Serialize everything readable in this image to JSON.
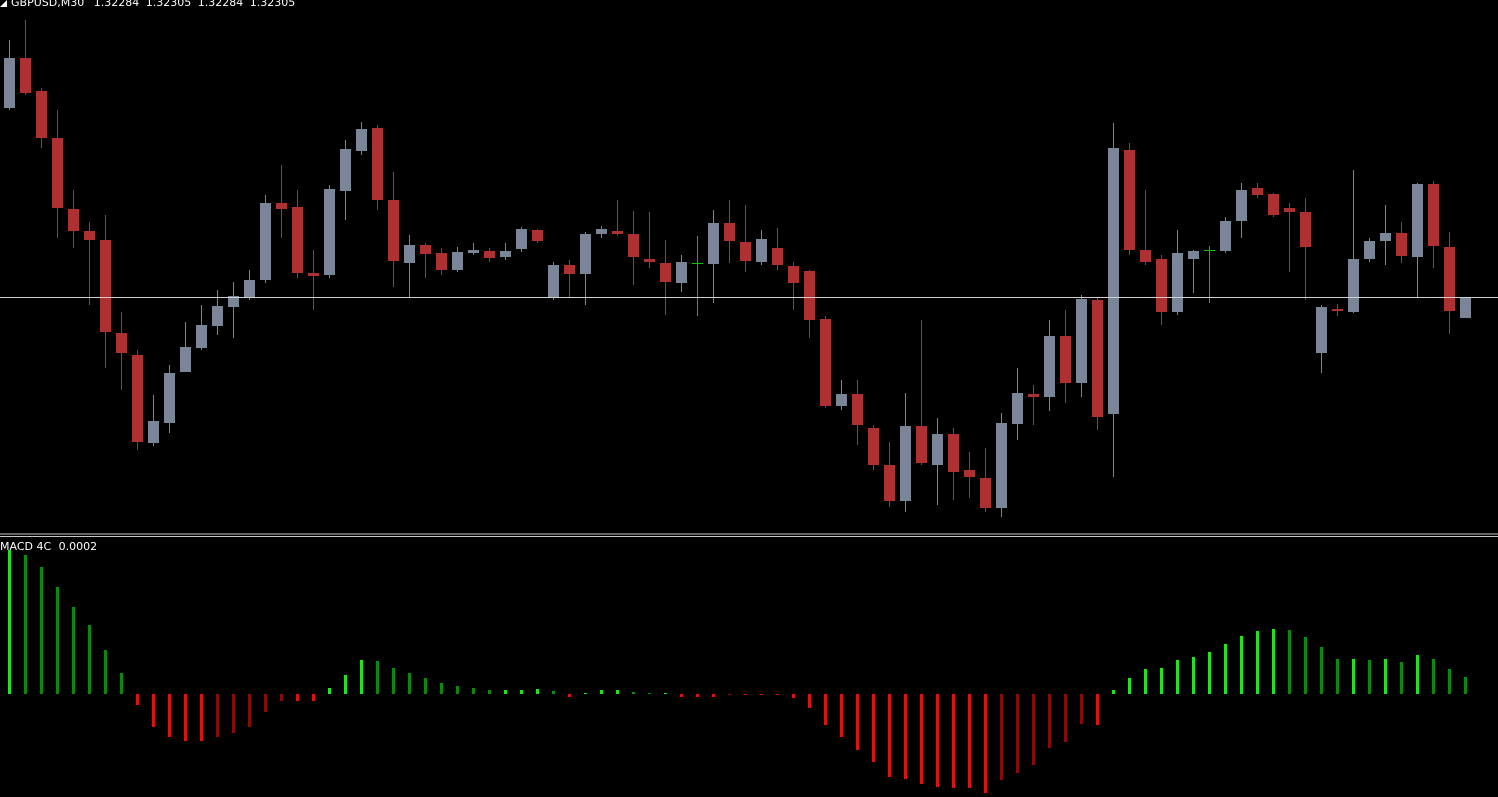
{
  "chart_data": [
    {
      "type": "candlestick",
      "title": "GBPUSD,M30",
      "open": [
        1.32494,
        1.32544,
        1.32511,
        1.32464,
        1.32393,
        1.32371,
        1.32362,
        1.32269,
        1.32247,
        1.32159,
        1.32179,
        1.3223,
        1.32254,
        1.32276,
        1.32295,
        1.32305,
        1.32322,
        1.32399,
        1.32395,
        1.32329,
        1.32327,
        1.32411,
        1.32451,
        1.32474,
        1.32402,
        1.32339,
        1.32357,
        1.32349,
        1.32332,
        1.32349,
        1.32351,
        1.32345,
        1.32353,
        1.32372,
        1.32304,
        1.32337,
        1.32328,
        1.32368,
        1.32371,
        1.32368,
        1.32343,
        1.32339,
        1.32319,
        1.32339,
        1.32338,
        1.32379,
        1.3236,
        1.3234,
        1.32354,
        1.32336,
        1.32331,
        1.32283,
        1.32196,
        1.32208,
        1.32174,
        1.32137,
        1.32101,
        1.32176,
        1.32137,
        1.32168,
        1.32132,
        1.32124,
        1.32094,
        1.32178,
        1.32208,
        1.32205,
        1.32266,
        1.32219,
        1.32302,
        1.32188,
        1.32452,
        1.32352,
        1.32343,
        1.3229,
        1.32343,
        1.32352,
        1.32351,
        1.32381,
        1.32414,
        1.32408,
        1.32394,
        1.3239,
        1.32249,
        1.32293,
        1.3229,
        1.32343,
        1.32361,
        1.32369,
        1.32345,
        1.32418,
        1.32355,
        1.32284
      ],
      "high": [
        1.32562,
        1.32582,
        1.32514,
        1.32492,
        1.32412,
        1.3238,
        1.32387,
        1.3229,
        1.32252,
        1.32207,
        1.32237,
        1.3228,
        1.32297,
        1.32312,
        1.3232,
        1.32332,
        1.32407,
        1.32437,
        1.32412,
        1.32352,
        1.32417,
        1.32462,
        1.3248,
        1.32477,
        1.3243,
        1.32367,
        1.32359,
        1.32354,
        1.32355,
        1.32359,
        1.32354,
        1.32359,
        1.32375,
        1.32373,
        1.3234,
        1.32342,
        1.3237,
        1.32376,
        1.32402,
        1.32391,
        1.3239,
        1.32362,
        1.32347,
        1.32366,
        1.32392,
        1.32402,
        1.32397,
        1.32372,
        1.32374,
        1.3234,
        1.32332,
        1.32286,
        1.32222,
        1.32222,
        1.32177,
        1.3216,
        1.32209,
        1.32282,
        1.32184,
        1.32174,
        1.3215,
        1.32154,
        1.32189,
        1.32234,
        1.32217,
        1.32282,
        1.32292,
        1.32307,
        1.32304,
        1.32479,
        1.32459,
        1.32412,
        1.32347,
        1.32372,
        1.32352,
        1.32356,
        1.32385,
        1.32419,
        1.32419,
        1.32409,
        1.32399,
        1.32404,
        1.32297,
        1.32298,
        1.32432,
        1.32364,
        1.32397,
        1.3238,
        1.32419,
        1.32421,
        1.3237,
        1.32305
      ],
      "low": [
        1.32492,
        1.32507,
        1.32454,
        1.32364,
        1.32354,
        1.32297,
        1.32234,
        1.32212,
        1.32152,
        1.32156,
        1.32169,
        1.3223,
        1.32252,
        1.32267,
        1.32264,
        1.32302,
        1.32319,
        1.32364,
        1.32324,
        1.32292,
        1.32324,
        1.32382,
        1.32447,
        1.32392,
        1.32315,
        1.32304,
        1.32324,
        1.32327,
        1.3233,
        1.32347,
        1.3234,
        1.32342,
        1.3235,
        1.32359,
        1.32302,
        1.32304,
        1.32297,
        1.32364,
        1.32366,
        1.32317,
        1.32334,
        1.32287,
        1.3231,
        1.32286,
        1.32299,
        1.32339,
        1.3233,
        1.32337,
        1.32332,
        1.32292,
        1.32264,
        1.32194,
        1.32192,
        1.32157,
        1.32132,
        1.32095,
        1.3209,
        1.32137,
        1.32097,
        1.32102,
        1.32104,
        1.3209,
        1.32085,
        1.32162,
        1.32177,
        1.32191,
        1.32199,
        1.32205,
        1.32172,
        1.32125,
        1.32347,
        1.32337,
        1.32277,
        1.32287,
        1.32309,
        1.32299,
        1.32349,
        1.32364,
        1.32404,
        1.32385,
        1.3233,
        1.32302,
        1.32229,
        1.32286,
        1.32289,
        1.3234,
        1.32337,
        1.32339,
        1.32305,
        1.32334,
        1.32268,
        1.32284
      ],
      "close": [
        1.32544,
        1.32509,
        1.32464,
        1.32394,
        1.32371,
        1.32362,
        1.3227,
        1.32249,
        1.3216,
        1.32181,
        1.32229,
        1.32255,
        1.32277,
        1.32296,
        1.32306,
        1.32322,
        1.32399,
        1.32393,
        1.32329,
        1.32326,
        1.32413,
        1.32453,
        1.32473,
        1.32402,
        1.32341,
        1.32357,
        1.32348,
        1.32332,
        1.3235,
        1.32352,
        1.32344,
        1.32351,
        1.32373,
        1.32361,
        1.32337,
        1.32328,
        1.32368,
        1.32373,
        1.32368,
        1.32345,
        1.3234,
        1.3232,
        1.3234,
        1.32339,
        1.32379,
        1.32361,
        1.32341,
        1.32363,
        1.32337,
        1.32319,
        1.32282,
        1.32196,
        1.32208,
        1.32177,
        1.32137,
        1.32101,
        1.32176,
        1.32139,
        1.32168,
        1.3213,
        1.32125,
        1.32094,
        1.32179,
        1.32209,
        1.32205,
        1.32266,
        1.32219,
        1.32303,
        1.32185,
        1.32454,
        1.32352,
        1.3234,
        1.3229,
        1.32349,
        1.32351,
        1.32352,
        1.32381,
        1.32412,
        1.32407,
        1.32387,
        1.3239,
        1.32355,
        1.32295,
        1.32291,
        1.32343,
        1.32361,
        1.32369,
        1.32346,
        1.32418,
        1.32356,
        1.32291,
        1.32305
      ],
      "ylim": [
        1.32067,
        1.32602
      ],
      "colors": {
        "bull": "#7a8597",
        "bear": "#ad3131",
        "doji": "#00c800"
      }
    },
    {
      "type": "bar",
      "title": "MACD 4C",
      "current_value": 0.0002,
      "values": [
        0.00144,
        0.00139,
        0.00127,
        0.00107,
        0.00087,
        0.00069,
        0.00044,
        0.00021,
        -0.00011,
        -0.00033,
        -0.00043,
        -0.00047,
        -0.00047,
        -0.00043,
        -0.00039,
        -0.00033,
        -0.00018,
        -7e-05,
        -7e-05,
        -7e-05,
        6e-05,
        0.00019,
        0.00034,
        0.00033,
        0.00026,
        0.00021,
        0.00016,
        0.00011,
        8e-05,
        6e-05,
        4e-05,
        4e-05,
        4e-05,
        5e-05,
        3e-05,
        -3e-05,
        1e-05,
        4e-05,
        4e-05,
        2e-05,
        1e-05,
        1e-05,
        -3e-05,
        -3e-05,
        -3e-05,
        -1e-05,
        -1e-05,
        -1e-05,
        -1e-05,
        -4e-05,
        -0.00014,
        -0.00031,
        -0.00043,
        -0.00056,
        -0.00068,
        -0.00083,
        -0.00085,
        -0.0009,
        -0.00093,
        -0.00094,
        -0.00094,
        -0.00099,
        -0.00086,
        -0.00079,
        -0.00071,
        -0.00054,
        -0.00048,
        -0.0003,
        -0.00031,
        4e-05,
        0.00016,
        0.00025,
        0.00026,
        0.00034,
        0.00037,
        0.00042,
        0.0005,
        0.00058,
        0.00063,
        0.00065,
        0.00064,
        0.00057,
        0.00047,
        0.00035,
        0.00035,
        0.00034,
        0.00035,
        0.00032,
        0.00039,
        0.00035,
        0.00025,
        0.00017
      ],
      "ylim": [
        -0.00103,
        0.00157
      ],
      "colors": {
        "up_rising": "#1ee61e",
        "up_falling": "#0a8a0a",
        "down_falling": "#e01010",
        "down_rising": "#8a0a0a"
      }
    }
  ]
}
